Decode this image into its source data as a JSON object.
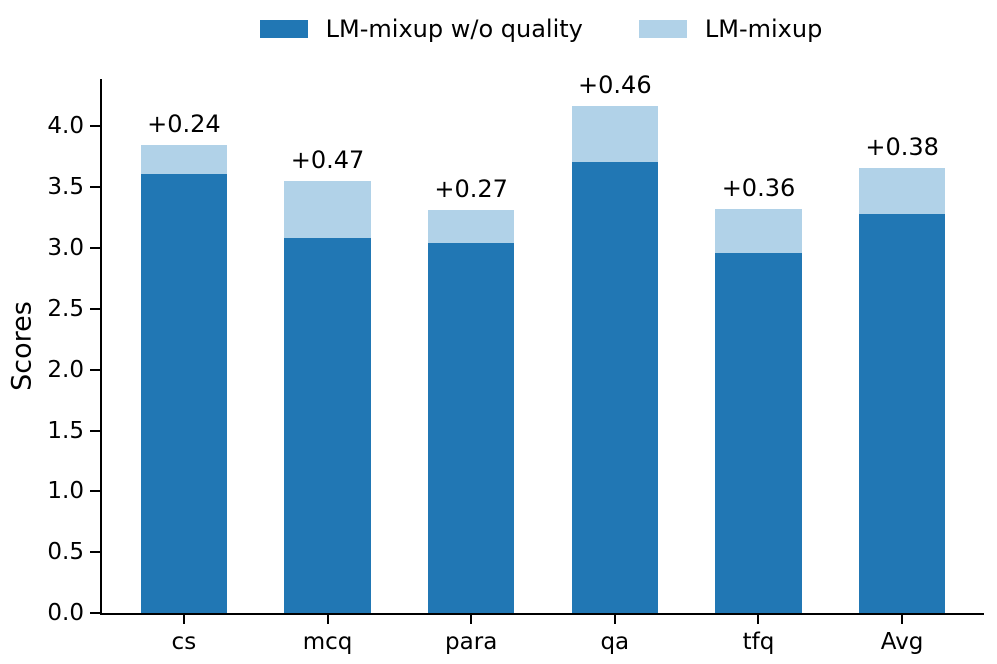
{
  "legend": [
    {
      "label": "LM-mixup w/o quality",
      "color": "#2177b4"
    },
    {
      "label": "LM-mixup",
      "color": "#b1d2e8"
    }
  ],
  "chart_data": {
    "type": "bar",
    "stacked": true,
    "title": "",
    "xlabel": "",
    "ylabel": "Scores",
    "categories": [
      "cs",
      "mcq",
      "para",
      "qa",
      "tfq",
      "Avg"
    ],
    "series": [
      {
        "name": "LM-mixup w/o quality",
        "color": "#2177b4",
        "values": [
          3.61,
          3.08,
          3.04,
          3.71,
          2.96,
          3.28
        ]
      },
      {
        "name": "LM-mixup",
        "color": "#b1d2e8",
        "values": [
          0.24,
          0.47,
          0.27,
          0.46,
          0.36,
          0.38
        ]
      }
    ],
    "annotations": [
      "+0.24",
      "+0.47",
      "+0.27",
      "+0.46",
      "+0.36",
      "+0.38"
    ],
    "yticks": [
      0.0,
      0.5,
      1.0,
      1.5,
      2.0,
      2.5,
      3.0,
      3.5,
      4.0
    ],
    "ytick_labels": [
      "0.0",
      "0.5",
      "1.0",
      "1.5",
      "2.0",
      "2.5",
      "3.0",
      "3.5",
      "4.0"
    ],
    "ylim": [
      0,
      4.39
    ],
    "xlim": [
      -0.57,
      5.57
    ],
    "bar_width": 0.6,
    "grid": false,
    "legend_position": "top-center"
  }
}
